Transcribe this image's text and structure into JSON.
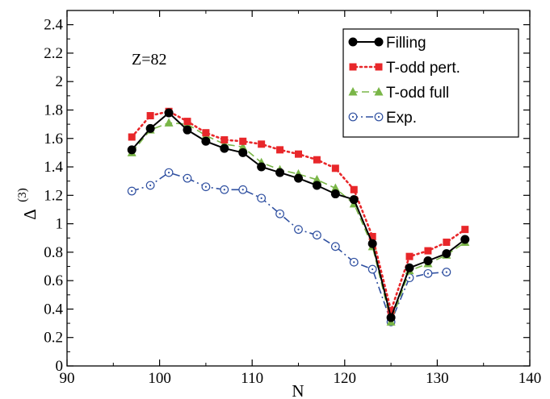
{
  "chart_data": {
    "type": "line",
    "xlabel": "N",
    "ylabel": "Δ",
    "ylabel_superscript": "(3)",
    "xlim": [
      90,
      140
    ],
    "ylim": [
      0,
      2.5
    ],
    "xticks": [
      "90",
      "100",
      "110",
      "120",
      "130",
      "140"
    ],
    "yticks": [
      "0",
      "0.2",
      "0.4",
      "0.6",
      "0.8",
      "1",
      "1.2",
      "1.4",
      "1.6",
      "1.8",
      "2",
      "2.2",
      "2.4"
    ],
    "annotation": "Z=82",
    "grid": false,
    "legend_position": "top-right",
    "series": [
      {
        "name": "Filling",
        "color": "#000000",
        "line": "solid",
        "marker": "circle-filled",
        "x": [
          97,
          99,
          101,
          103,
          105,
          107,
          109,
          111,
          113,
          115,
          117,
          119,
          121,
          123,
          125,
          127,
          129,
          131,
          133
        ],
        "y": [
          1.52,
          1.67,
          1.78,
          1.66,
          1.58,
          1.53,
          1.5,
          1.4,
          1.36,
          1.32,
          1.27,
          1.21,
          1.17,
          0.86,
          0.34,
          0.69,
          0.74,
          0.79,
          0.89
        ]
      },
      {
        "name": "T-odd pert.",
        "color": "#e8272a",
        "line": "dotted",
        "marker": "square-filled",
        "x": [
          97,
          99,
          101,
          103,
          105,
          107,
          109,
          111,
          113,
          115,
          117,
          119,
          121,
          123,
          125,
          127,
          129,
          131,
          133
        ],
        "y": [
          1.61,
          1.76,
          1.79,
          1.72,
          1.64,
          1.59,
          1.58,
          1.56,
          1.52,
          1.49,
          1.45,
          1.39,
          1.24,
          0.91,
          0.39,
          0.77,
          0.81,
          0.87,
          0.96
        ]
      },
      {
        "name": "T-odd full",
        "color": "#7ab648",
        "line": "dashed",
        "marker": "triangle-filled",
        "x": [
          97,
          99,
          101,
          103,
          105,
          107,
          109,
          111,
          113,
          115,
          117,
          119,
          121,
          123,
          125,
          127,
          129,
          131,
          133
        ],
        "y": [
          1.5,
          1.66,
          1.71,
          1.7,
          1.62,
          1.56,
          1.54,
          1.43,
          1.38,
          1.35,
          1.31,
          1.25,
          1.14,
          0.84,
          0.31,
          0.67,
          0.72,
          0.78,
          0.87
        ]
      },
      {
        "name": "Exp.",
        "color": "#2e4fa0",
        "line": "dashdot",
        "marker": "circle-open-dot",
        "x": [
          97,
          99,
          101,
          103,
          105,
          107,
          109,
          111,
          113,
          115,
          117,
          119,
          121,
          123,
          125,
          127,
          129,
          131
        ],
        "y": [
          1.23,
          1.27,
          1.36,
          1.32,
          1.26,
          1.24,
          1.24,
          1.18,
          1.07,
          0.96,
          0.92,
          0.84,
          0.73,
          0.68,
          0.31,
          0.62,
          0.65,
          0.66
        ]
      }
    ]
  }
}
